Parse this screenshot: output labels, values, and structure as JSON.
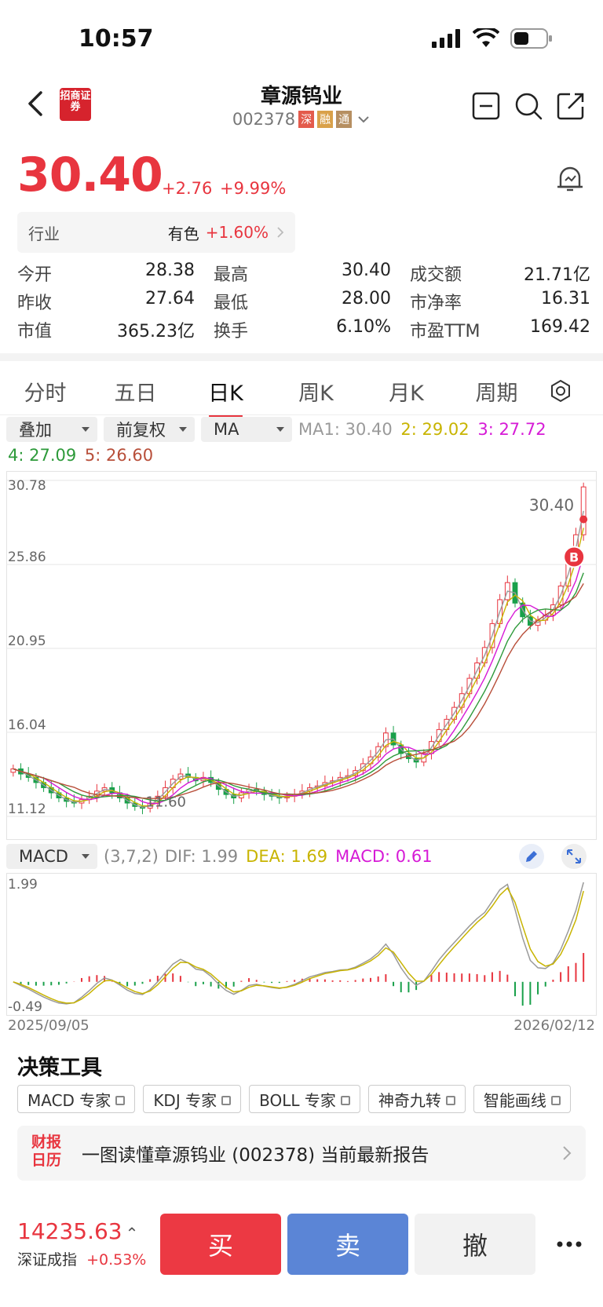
{
  "status": {
    "time": "10:57"
  },
  "header": {
    "broker_logo_text": "招商证券",
    "stock_name": "章源钨业",
    "stock_code": "002378",
    "tags": [
      "深",
      "融",
      "通"
    ]
  },
  "quote": {
    "price": "30.40",
    "change": "+2.76",
    "change_pct": "+9.99%",
    "industry_label": "行业",
    "industry_name": "有色",
    "industry_pct": "+1.60%",
    "stats": [
      [
        {
          "k": "今开",
          "v": "28.38",
          "color": "red"
        },
        {
          "k": "最高",
          "v": "30.40",
          "color": "red"
        },
        {
          "k": "成交额",
          "v": "21.71亿",
          "color": "normal"
        }
      ],
      [
        {
          "k": "昨收",
          "v": "27.64",
          "color": "normal"
        },
        {
          "k": "最低",
          "v": "28.00",
          "color": "red"
        },
        {
          "k": "市净率",
          "v": "16.31",
          "color": "normal"
        }
      ],
      [
        {
          "k": "市值",
          "v": "365.23亿",
          "color": "normal"
        },
        {
          "k": "换手",
          "v": "6.10%",
          "color": "normal"
        },
        {
          "k": "市盈TTM",
          "v": "169.42",
          "color": "normal"
        }
      ]
    ]
  },
  "tabs": [
    "分时",
    "五日",
    "日K",
    "周K",
    "月K",
    "周期"
  ],
  "active_tab": "日K",
  "controls": {
    "overlay": "叠加",
    "adjust": "前复权",
    "indicator": "MA"
  },
  "ma": {
    "ma1": "MA1: 30.40",
    "ma2": "2: 29.02",
    "ma3": "3: 27.72",
    "ma4": "4: 27.09",
    "ma5": "5: 26.60",
    "colors": {
      "ma1": "#9a9a9a",
      "ma2": "#c8b400",
      "ma3": "#d61ad6",
      "ma4": "#2d9a3a",
      "ma5": "#b84f3a"
    }
  },
  "chart_data": {
    "type": "candlestick",
    "y_ticks": [
      "30.78",
      "25.86",
      "20.95",
      "16.04",
      "11.12"
    ],
    "ylim": [
      11.12,
      30.78
    ],
    "last_price_label": "30.40",
    "low_label": "11.60",
    "marker": "B",
    "x_start": "2025/09/05",
    "x_end": "2026/02/12",
    "close_series": [
      13.9,
      13.6,
      13.4,
      13.1,
      12.8,
      12.5,
      12.2,
      12.0,
      11.9,
      12.1,
      12.3,
      12.6,
      12.8,
      12.5,
      12.2,
      11.9,
      11.7,
      11.6,
      11.9,
      12.3,
      12.8,
      13.3,
      13.6,
      13.4,
      13.2,
      13.4,
      13.1,
      12.7,
      12.4,
      12.2,
      12.5,
      12.7,
      12.6,
      12.4,
      12.3,
      12.2,
      12.3,
      12.4,
      12.6,
      12.8,
      12.9,
      13.1,
      13.2,
      13.4,
      13.5,
      13.8,
      14.2,
      14.6,
      15.2,
      16.0,
      15.3,
      14.8,
      14.5,
      14.3,
      14.8,
      15.5,
      16.2,
      16.8,
      17.5,
      18.3,
      19.2,
      20.1,
      21.0,
      22.4,
      23.8,
      24.8,
      23.6,
      22.8,
      22.3,
      22.6,
      22.9,
      23.5,
      24.6,
      26.0,
      27.6,
      30.4
    ],
    "macd": {
      "label": "MACD",
      "params": "(3,7,2)",
      "dif": "DIF: 1.99",
      "dea": "DEA: 1.69",
      "macd": "MACD: 0.61",
      "y_ticks": [
        "1.99",
        "-0.49"
      ]
    }
  },
  "tools": {
    "title": "决策工具",
    "items": [
      "MACD 专家",
      "KDJ 专家",
      "BOLL 专家",
      "神奇九转",
      "智能画线"
    ]
  },
  "report": {
    "logo_text": "财报日历",
    "text": "一图读懂章源钨业 (002378) 当前最新报告"
  },
  "bottom": {
    "index_value": "14235.63",
    "index_name": "深证成指",
    "index_pct": "+0.53%",
    "buy": "买",
    "sell": "卖",
    "cancel": "撤"
  }
}
